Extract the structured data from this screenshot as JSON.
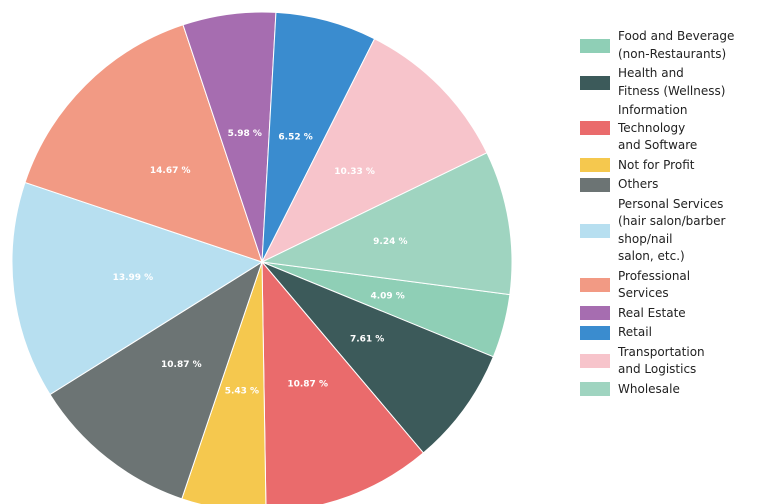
{
  "chart_data": {
    "type": "pie",
    "title": "",
    "categories": [
      "Food and Beverage\n(non-Restaurants)",
      "Health and\nFitness (Wellness)",
      "Information\nTechnology\nand Software",
      "Not for Profit",
      "Others",
      "Personal Services\n(hair salon/barber\nshop/nail\nsalon, etc.)",
      "Professional\nServices",
      "Real Estate",
      "Retail",
      "Transportation\nand Logistics",
      "Wholesale"
    ],
    "slices": [
      {
        "category": "Food and Beverage\n(non-Restaurants)",
        "value": 4.09,
        "label": "4.09 %",
        "color": "#8fcfb6",
        "label_color": "#ffffff"
      },
      {
        "category": "Health and\nFitness (Wellness)",
        "value": 7.61,
        "label": "7.61 %",
        "color": "#3c5a5a",
        "label_color": "#ffffff"
      },
      {
        "category": "Information\nTechnology\nand Software",
        "value": 10.87,
        "label": "10.87 %",
        "color": "#ea6b6c",
        "label_color": "#ffffff"
      },
      {
        "category": "Not for Profit",
        "value": 5.43,
        "label": "5.43 %",
        "color": "#f5c84e",
        "label_color": "#ffffff"
      },
      {
        "category": "Others",
        "value": 10.87,
        "label": "10.87 %",
        "color": "#6c7474",
        "label_color": "#ffffff"
      },
      {
        "category": "Personal Services\n(hair salon/barber\nshop/nail\nsalon, etc.)",
        "value": 13.99,
        "label": "13.99 %",
        "color": "#b7dff0",
        "label_color": "#ffffff"
      },
      {
        "category": "Professional\nServices",
        "value": 14.67,
        "label": "14.67 %",
        "color": "#f29a84",
        "label_color": "#ffffff"
      },
      {
        "category": "Real Estate",
        "value": 5.98,
        "label": "5.98 %",
        "color": "#a66db0",
        "label_color": "#ffffff"
      },
      {
        "category": "Retail",
        "value": 6.52,
        "label": "6.52 %",
        "color": "#3a8ccf",
        "label_color": "#ffffff"
      },
      {
        "category": "Transportation\nand Logistics",
        "value": 10.33,
        "label": "10.33 %",
        "color": "#f7c4cb",
        "label_color": "#ffffff"
      },
      {
        "category": "Wholesale",
        "value": 9.24,
        "label": "9.24 %",
        "color": "#9fd4c0",
        "label_color": "#ffffff"
      }
    ],
    "legend_position": "right"
  }
}
